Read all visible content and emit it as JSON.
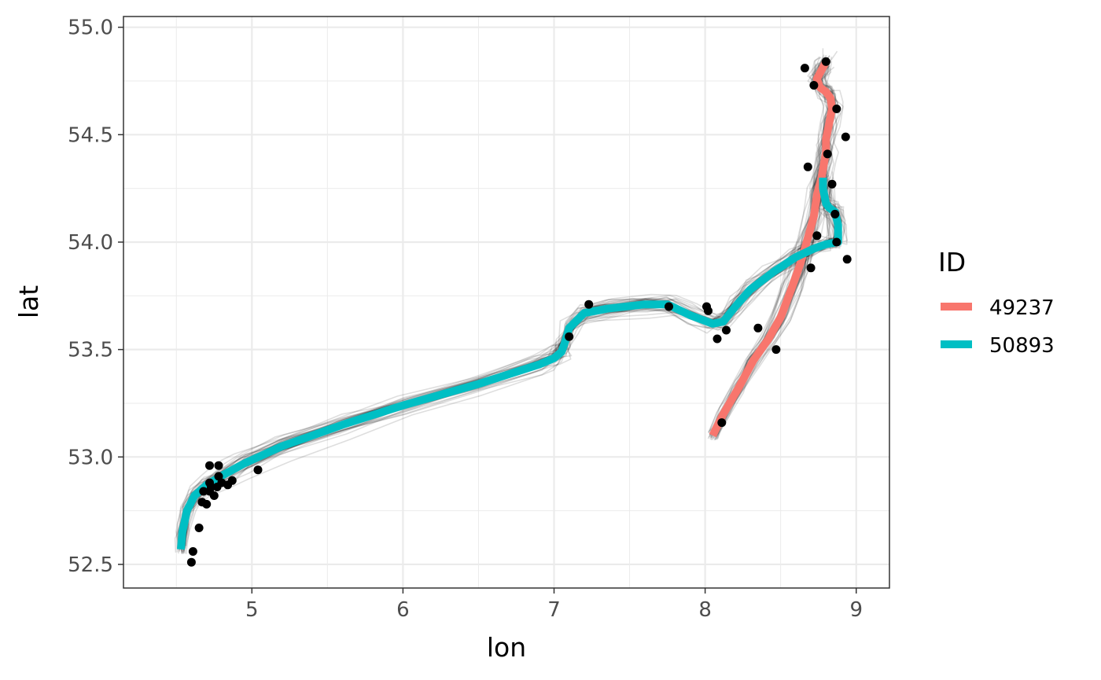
{
  "chart_data": {
    "type": "line",
    "xlabel": "lon",
    "ylabel": "lat",
    "xlim": [
      4.15,
      9.22
    ],
    "ylim": [
      52.39,
      55.05
    ],
    "x_ticks": [
      5,
      6,
      7,
      8,
      9
    ],
    "y_ticks": [
      52.5,
      53.0,
      53.5,
      54.0,
      54.5,
      55.0
    ],
    "x_tick_labels": [
      "5",
      "6",
      "7",
      "8",
      "9"
    ],
    "y_tick_labels": [
      "52.5",
      "53.0",
      "53.5",
      "54.0",
      "54.5",
      "55.0"
    ],
    "grid": true,
    "legend": {
      "title": "ID",
      "position": "right"
    },
    "series": [
      {
        "name": "49237",
        "color": "#F8766D",
        "x": [
          8.05,
          8.12,
          8.22,
          8.32,
          8.42,
          8.5,
          8.57,
          8.63,
          8.68,
          8.72,
          8.74,
          8.77,
          8.79,
          8.8,
          8.8,
          8.82,
          8.84,
          8.83,
          8.8,
          8.76,
          8.74,
          8.77,
          8.8
        ],
        "y": [
          53.1,
          53.2,
          53.32,
          53.45,
          53.55,
          53.65,
          53.78,
          53.9,
          54.02,
          54.12,
          54.22,
          54.3,
          54.38,
          54.42,
          54.48,
          54.55,
          54.62,
          54.67,
          54.7,
          54.72,
          54.76,
          54.8,
          54.84
        ]
      },
      {
        "name": "50893",
        "color": "#00BFC4",
        "x": [
          4.53,
          4.54,
          4.57,
          4.62,
          4.7,
          4.82,
          4.95,
          5.2,
          5.6,
          6.0,
          6.5,
          6.9,
          7.0,
          7.05,
          7.07,
          7.1,
          7.2,
          7.35,
          7.6,
          7.75,
          7.9,
          8.05,
          8.12,
          8.2,
          8.3,
          8.45,
          8.6,
          8.72,
          8.8,
          8.88,
          8.88,
          8.86,
          8.82,
          8.8,
          8.78,
          8.78
        ],
        "y": [
          52.57,
          52.65,
          52.75,
          52.82,
          52.87,
          52.92,
          52.97,
          53.05,
          53.15,
          53.24,
          53.34,
          53.43,
          53.46,
          53.49,
          53.53,
          53.6,
          53.67,
          53.69,
          53.71,
          53.71,
          53.66,
          53.62,
          53.63,
          53.7,
          53.78,
          53.86,
          53.93,
          53.97,
          53.99,
          54.0,
          54.08,
          54.14,
          54.16,
          54.18,
          54.25,
          54.3
        ]
      }
    ],
    "points": {
      "color": "#000000",
      "x": [
        4.6,
        4.61,
        4.65,
        4.67,
        4.68,
        4.7,
        4.72,
        4.72,
        4.73,
        4.75,
        4.78,
        4.78,
        4.8,
        4.72,
        4.77,
        4.84,
        4.87,
        5.04,
        7.1,
        7.23,
        7.76,
        8.01,
        8.02,
        8.08,
        8.14,
        8.35,
        8.11,
        8.47,
        8.66,
        8.68,
        8.7,
        8.72,
        8.74,
        8.8,
        8.81,
        8.84,
        8.86,
        8.87,
        8.87,
        8.93,
        8.94
      ],
      "y": [
        52.51,
        52.56,
        52.67,
        52.79,
        52.84,
        52.78,
        52.84,
        52.96,
        52.86,
        52.82,
        52.91,
        52.96,
        52.88,
        52.88,
        52.86,
        52.87,
        52.89,
        52.94,
        53.56,
        53.71,
        53.7,
        53.7,
        53.68,
        53.55,
        53.59,
        53.6,
        53.16,
        53.5,
        54.81,
        54.35,
        53.88,
        54.73,
        54.03,
        54.84,
        54.41,
        54.27,
        54.13,
        54.62,
        54.0,
        54.49,
        53.92
      ]
    }
  }
}
